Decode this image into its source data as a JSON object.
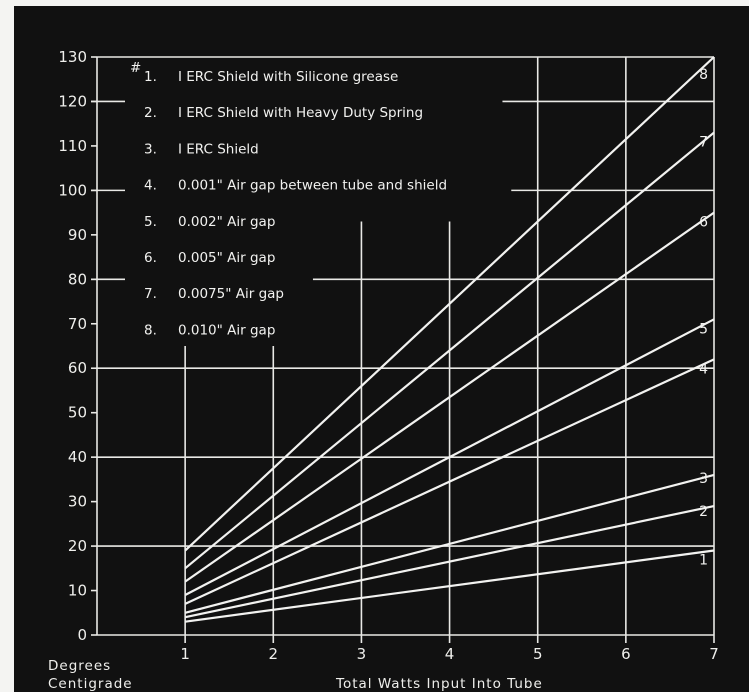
{
  "chart_data": {
    "type": "line",
    "xlabel": "Total Watts Input Into Tube",
    "ylabel_line1": "Degrees",
    "ylabel_line2": "Centigrade",
    "xlim": [
      0,
      7
    ],
    "ylim": [
      0,
      130
    ],
    "x_ticks": [
      "1",
      "2",
      "3",
      "4",
      "5",
      "6",
      "7"
    ],
    "y_ticks": [
      "0",
      "10",
      "20",
      "30",
      "40",
      "50",
      "60",
      "70",
      "80",
      "90",
      "100",
      "110",
      "120",
      "130"
    ],
    "legend_marker": "#",
    "series": [
      {
        "name": "I ERC Shield with Silicone grease",
        "number": "1.",
        "end_label": "1",
        "x": [
          1,
          7
        ],
        "y": [
          3,
          19
        ]
      },
      {
        "name": "I ERC Shield with Heavy Duty Spring",
        "number": "2.",
        "end_label": "2",
        "x": [
          1,
          7
        ],
        "y": [
          4,
          29
        ]
      },
      {
        "name": "I ERC Shield",
        "number": "3.",
        "end_label": "3",
        "x": [
          1,
          7
        ],
        "y": [
          5,
          36
        ]
      },
      {
        "name": "0.001\" Air gap between tube and shield",
        "number": "4.",
        "end_label": "4",
        "x": [
          1,
          7
        ],
        "y": [
          7,
          62
        ]
      },
      {
        "name": "0.002\" Air gap",
        "number": "5.",
        "end_label": "5",
        "x": [
          1,
          7
        ],
        "y": [
          9,
          71
        ]
      },
      {
        "name": "0.005\" Air gap",
        "number": "6.",
        "end_label": "6",
        "x": [
          1,
          7
        ],
        "y": [
          12,
          95
        ]
      },
      {
        "name": "0.0075\" Air gap",
        "number": "7.",
        "end_label": "7",
        "x": [
          1,
          7
        ],
        "y": [
          15,
          113
        ]
      },
      {
        "name": "0.010\" Air gap",
        "number": "8.",
        "end_label": "8",
        "x": [
          1,
          7
        ],
        "y": [
          19,
          130
        ]
      }
    ]
  }
}
